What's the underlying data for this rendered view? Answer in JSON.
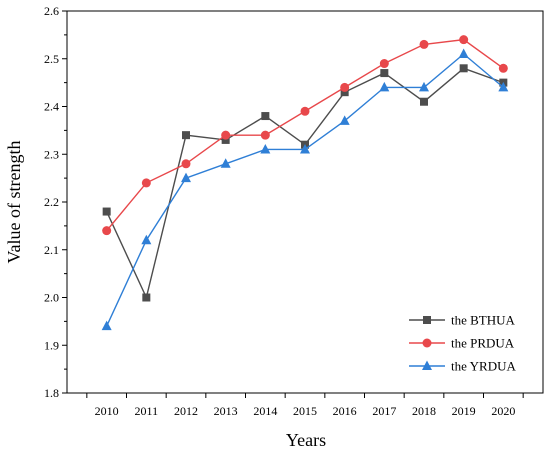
{
  "chart_data": {
    "type": "line",
    "xlabel": "Years",
    "ylabel": "Value of strength",
    "x": [
      "2010",
      "2011",
      "2012",
      "2013",
      "2014",
      "2015",
      "2016",
      "2017",
      "2018",
      "2019",
      "2020"
    ],
    "ylim": [
      1.8,
      2.6
    ],
    "yticks": [
      "1.8",
      "1.9",
      "2.0",
      "2.1",
      "2.2",
      "2.3",
      "2.4",
      "2.5",
      "2.6"
    ],
    "grid": false,
    "legend_position": "bottom-right",
    "series": [
      {
        "name": "the BTHUA",
        "color": "#4d4d4d",
        "marker": "square",
        "values": [
          2.18,
          2.0,
          2.34,
          2.33,
          2.38,
          2.32,
          2.43,
          2.47,
          2.41,
          2.48,
          2.45
        ]
      },
      {
        "name": "the PRDUA",
        "color": "#e8484b",
        "marker": "circle",
        "values": [
          2.14,
          2.24,
          2.28,
          2.34,
          2.34,
          2.39,
          2.44,
          2.49,
          2.53,
          2.54,
          2.48
        ]
      },
      {
        "name": "the YRDUA",
        "color": "#2f7fd6",
        "marker": "triangle",
        "values": [
          1.94,
          2.12,
          2.25,
          2.28,
          2.31,
          2.31,
          2.37,
          2.44,
          2.44,
          2.51,
          2.44
        ]
      }
    ]
  }
}
